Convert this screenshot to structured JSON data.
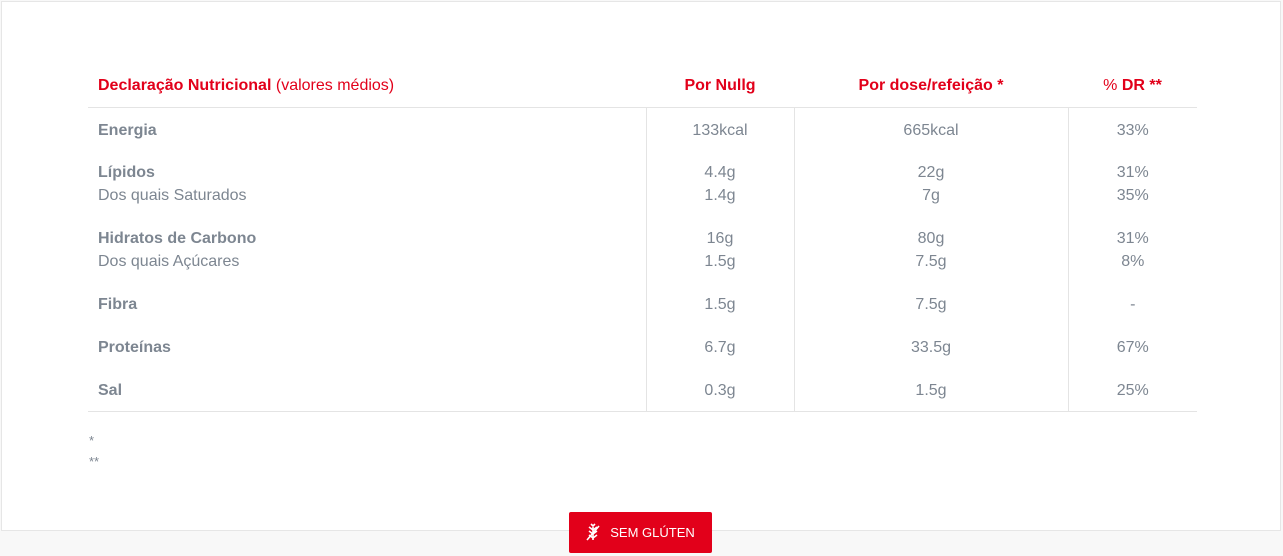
{
  "table": {
    "header": {
      "title": "Declaração Nutricional",
      "title_note": "(valores médios)",
      "col1": "Por Nullg",
      "col2": "Por dose/refeição *",
      "col3_prefix": "%",
      "col3": "DR **"
    },
    "rows": [
      {
        "label": "Energia",
        "v1": "133kcal",
        "v2": "665kcal",
        "v3": "33%"
      },
      {
        "label": "Lípidos",
        "sub": "Dos quais Saturados",
        "v1": "4.4g",
        "s1": "1.4g",
        "v2": "22g",
        "s2": "7g",
        "v3": "31%",
        "s3": "35%"
      },
      {
        "label": "Hidratos de Carbono",
        "sub": "Dos quais Açúcares",
        "v1": "16g",
        "s1": "1.5g",
        "v2": "80g",
        "s2": "7.5g",
        "v3": "31%",
        "s3": "8%"
      },
      {
        "label": "Fibra",
        "v1": "1.5g",
        "v2": "7.5g",
        "v3": "-"
      },
      {
        "label": "Proteínas",
        "v1": "6.7g",
        "v2": "33.5g",
        "v3": "67%"
      },
      {
        "label": "Sal",
        "v1": "0.3g",
        "v2": "1.5g",
        "v3": "25%"
      }
    ]
  },
  "footnotes": [
    "*",
    "**"
  ],
  "button": {
    "label": "SEM GLÚTEN",
    "icon": "gluten-free-icon"
  },
  "colors": {
    "accent": "#e2001a",
    "text": "#7d8691"
  }
}
